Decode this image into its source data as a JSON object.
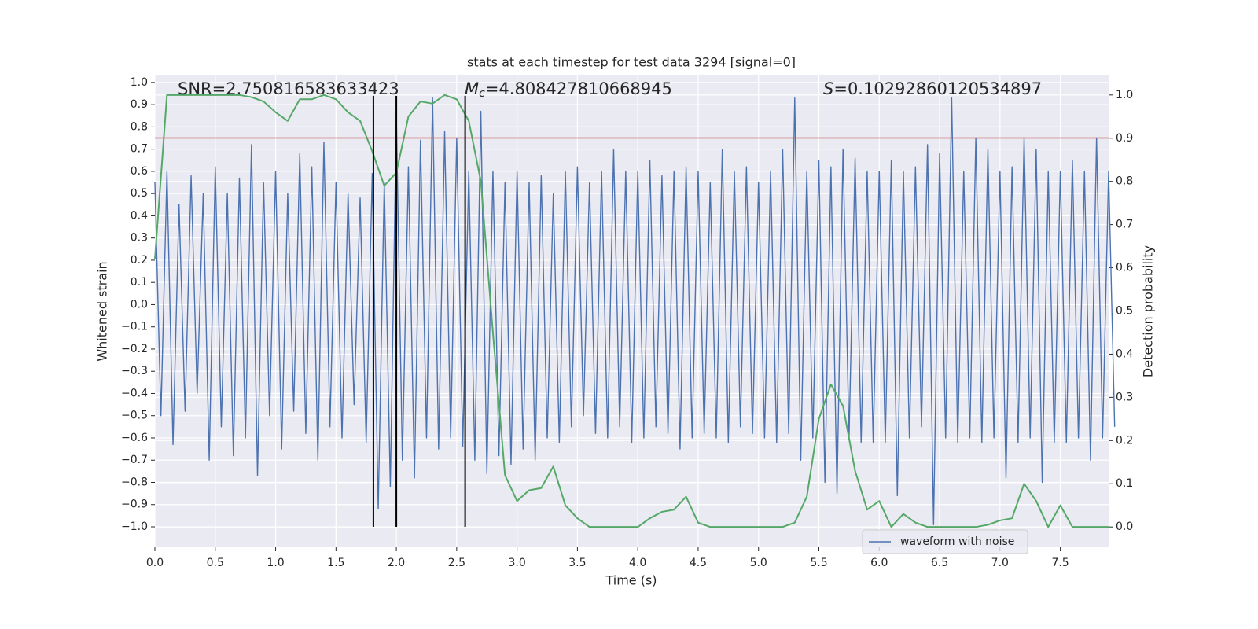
{
  "chart_data": {
    "type": "line",
    "title": "stats at each timestep for test data 3294 [signal=0]",
    "xlabel": "Time (s)",
    "ylabel": "Whitened strain",
    "y2label": "Detection probability",
    "annotations": [
      {
        "text": "SNR=2.750816583633423"
      },
      {
        "symbol": "M",
        "subscript": "c",
        "text": "=4.808427810668945"
      },
      {
        "symbol": "S",
        "text": "=0.10292860120534897"
      }
    ],
    "xlim": [
      0,
      7.9
    ],
    "ylim": [
      -1.092,
      1.035
    ],
    "y2lim": [
      -0.047,
      1.047
    ],
    "xticks": [
      {
        "value": 0,
        "label": "0.0"
      },
      {
        "value": 0.5,
        "label": "0.5"
      },
      {
        "value": 1,
        "label": "1.0"
      },
      {
        "value": 1.5,
        "label": "1.5"
      },
      {
        "value": 2,
        "label": "2.0"
      },
      {
        "value": 2.5,
        "label": "2.5"
      },
      {
        "value": 3,
        "label": "3.0"
      },
      {
        "value": 3.5,
        "label": "3.5"
      },
      {
        "value": 4,
        "label": "4.0"
      },
      {
        "value": 4.5,
        "label": "4.5"
      },
      {
        "value": 5,
        "label": "5.0"
      },
      {
        "value": 5.5,
        "label": "5.5"
      },
      {
        "value": 6,
        "label": "6.0"
      },
      {
        "value": 6.5,
        "label": "6.5"
      },
      {
        "value": 7,
        "label": "7.0"
      },
      {
        "value": 7.5,
        "label": "7.5"
      }
    ],
    "yticks": [
      {
        "value": -1,
        "label": "−1.0"
      },
      {
        "value": -0.9,
        "label": "−0.9"
      },
      {
        "value": -0.8,
        "label": "−0.8"
      },
      {
        "value": -0.7,
        "label": "−0.7"
      },
      {
        "value": -0.6,
        "label": "−0.6"
      },
      {
        "value": -0.5,
        "label": "−0.5"
      },
      {
        "value": -0.4,
        "label": "−0.4"
      },
      {
        "value": -0.3,
        "label": "−0.3"
      },
      {
        "value": -0.2,
        "label": "−0.2"
      },
      {
        "value": -0.1,
        "label": "−0.1"
      },
      {
        "value": 0,
        "label": "0.0"
      },
      {
        "value": 0.1,
        "label": "0.1"
      },
      {
        "value": 0.2,
        "label": "0.2"
      },
      {
        "value": 0.3,
        "label": "0.3"
      },
      {
        "value": 0.4,
        "label": "0.4"
      },
      {
        "value": 0.5,
        "label": "0.5"
      },
      {
        "value": 0.6,
        "label": "0.6"
      },
      {
        "value": 0.7,
        "label": "0.7"
      },
      {
        "value": 0.8,
        "label": "0.8"
      },
      {
        "value": 0.9,
        "label": "0.9"
      },
      {
        "value": 1,
        "label": "1.0"
      }
    ],
    "y2ticks": [
      {
        "value": 0,
        "label": "0.0"
      },
      {
        "value": 0.1,
        "label": "0.1"
      },
      {
        "value": 0.2,
        "label": "0.2"
      },
      {
        "value": 0.3,
        "label": "0.3"
      },
      {
        "value": 0.4,
        "label": "0.4"
      },
      {
        "value": 0.5,
        "label": "0.5"
      },
      {
        "value": 0.6,
        "label": "0.6"
      },
      {
        "value": 0.7,
        "label": "0.7"
      },
      {
        "value": 0.8,
        "label": "0.8"
      },
      {
        "value": 0.9,
        "label": "0.9"
      },
      {
        "value": 1,
        "label": "1.0"
      }
    ],
    "grid": true,
    "legend": "lower right",
    "hline": {
      "y": 0.75,
      "color": "#c44e52"
    },
    "vlines": {
      "x": [
        1.81,
        2.0,
        2.57
      ],
      "ymin": -1,
      "ymax": 0.94,
      "color": "#000000"
    },
    "series": [
      {
        "name": "waveform with noise",
        "color": "#4c72b0",
        "x": [
          0,
          0.05,
          0.1,
          0.15,
          0.2,
          0.25,
          0.3,
          0.35,
          0.4,
          0.45,
          0.5,
          0.55,
          0.6,
          0.65,
          0.7,
          0.75,
          0.8,
          0.85,
          0.9,
          0.95,
          1,
          1.05,
          1.1,
          1.15,
          1.2,
          1.25,
          1.3,
          1.35,
          1.4,
          1.45,
          1.5,
          1.55,
          1.6,
          1.65,
          1.7,
          1.75,
          1.8,
          1.85,
          1.9,
          1.95,
          2,
          2.05,
          2.1,
          2.15,
          2.2,
          2.25,
          2.3,
          2.35,
          2.4,
          2.45,
          2.5,
          2.55,
          2.6,
          2.65,
          2.7,
          2.75,
          2.8,
          2.85,
          2.9,
          2.95,
          3,
          3.05,
          3.1,
          3.15,
          3.2,
          3.25,
          3.3,
          3.35,
          3.4,
          3.45,
          3.5,
          3.55,
          3.6,
          3.65,
          3.7,
          3.75,
          3.8,
          3.85,
          3.9,
          3.95,
          4,
          4.05,
          4.1,
          4.15,
          4.2,
          4.25,
          4.3,
          4.35,
          4.4,
          4.45,
          4.5,
          4.55,
          4.6,
          4.65,
          4.7,
          4.75,
          4.8,
          4.85,
          4.9,
          4.95,
          5,
          5.05,
          5.1,
          5.15,
          5.2,
          5.25,
          5.3,
          5.35,
          5.4,
          5.45,
          5.5,
          5.55,
          5.6,
          5.65,
          5.7,
          5.75,
          5.8,
          5.85,
          5.9,
          5.95,
          6,
          6.05,
          6.1,
          6.15,
          6.2,
          6.25,
          6.3,
          6.35,
          6.4,
          6.45,
          6.5,
          6.55,
          6.6,
          6.65,
          6.7,
          6.75,
          6.8,
          6.85,
          6.9,
          6.95,
          7,
          7.05,
          7.1,
          7.15,
          7.2,
          7.25,
          7.3,
          7.35,
          7.4,
          7.45,
          7.5,
          7.55,
          7.6,
          7.65,
          7.7,
          7.75,
          7.8,
          7.85,
          7.9,
          7.95
        ],
        "values": [
          0.55,
          -0.5,
          0.6,
          -0.63,
          0.45,
          -0.48,
          0.58,
          -0.4,
          0.5,
          -0.7,
          0.62,
          -0.55,
          0.5,
          -0.68,
          0.57,
          -0.6,
          0.72,
          -0.77,
          0.55,
          -0.5,
          0.6,
          -0.65,
          0.5,
          -0.48,
          0.68,
          -0.58,
          0.62,
          -0.7,
          0.73,
          -0.55,
          0.55,
          -0.6,
          0.5,
          -0.45,
          0.48,
          -0.62,
          0.59,
          -0.92,
          0.55,
          -0.82,
          0.85,
          -0.7,
          0.62,
          -0.78,
          0.74,
          -0.6,
          0.93,
          -0.65,
          0.78,
          -0.6,
          0.75,
          -0.64,
          0.6,
          -0.7,
          0.87,
          -0.76,
          0.6,
          -0.68,
          0.55,
          -0.72,
          0.6,
          -0.65,
          0.55,
          -0.7,
          0.58,
          -0.6,
          0.5,
          -0.62,
          0.6,
          -0.55,
          0.62,
          -0.5,
          0.55,
          -0.58,
          0.6,
          -0.6,
          0.7,
          -0.55,
          0.6,
          -0.62,
          0.6,
          -0.6,
          0.65,
          -0.55,
          0.58,
          -0.58,
          0.6,
          -0.65,
          0.62,
          -0.6,
          0.6,
          -0.58,
          0.55,
          -0.6,
          0.7,
          -0.62,
          0.6,
          -0.55,
          0.62,
          -0.58,
          0.55,
          -0.6,
          0.6,
          -0.62,
          0.7,
          -0.58,
          0.93,
          -0.7,
          0.6,
          -0.6,
          0.65,
          -0.8,
          0.62,
          -0.85,
          0.7,
          -0.6,
          0.66,
          -0.62,
          0.6,
          -0.62,
          0.6,
          -0.62,
          0.65,
          -0.86,
          0.6,
          -0.6,
          0.62,
          -0.55,
          0.72,
          -0.99,
          0.68,
          -0.6,
          0.93,
          -0.62,
          0.6,
          -0.6,
          0.75,
          -0.62,
          0.7,
          -0.6,
          0.6,
          -0.78,
          0.62,
          -0.62,
          0.75,
          -0.6,
          0.7,
          -0.8,
          0.6,
          -0.62,
          0.6,
          -0.62,
          0.65,
          -0.6,
          0.6,
          -0.7,
          0.75,
          -0.6,
          0.6,
          -0.55
        ]
      },
      {
        "color": "#55a868",
        "axis": "y2",
        "x": [
          0,
          0.1,
          0.2,
          0.3,
          0.4,
          0.5,
          0.6,
          0.7,
          0.8,
          0.9,
          1,
          1.1,
          1.2,
          1.3,
          1.4,
          1.5,
          1.6,
          1.7,
          1.8,
          1.9,
          2,
          2.1,
          2.2,
          2.3,
          2.4,
          2.5,
          2.6,
          2.7,
          2.8,
          2.9,
          3,
          3.1,
          3.2,
          3.3,
          3.4,
          3.5,
          3.6,
          3.7,
          3.8,
          3.9,
          4,
          4.1,
          4.2,
          4.3,
          4.4,
          4.5,
          4.6,
          4.7,
          4.8,
          4.9,
          5,
          5.1,
          5.2,
          5.3,
          5.4,
          5.5,
          5.6,
          5.7,
          5.8,
          5.9,
          6,
          6.1,
          6.2,
          6.3,
          6.4,
          6.5,
          6.6,
          6.7,
          6.8,
          6.9,
          7,
          7.1,
          7.2,
          7.3,
          7.4,
          7.5,
          7.6,
          7.7,
          7.8,
          7.9
        ],
        "values": [
          0.62,
          1.0,
          1.0,
          1.0,
          1.0,
          1.0,
          1.0,
          1.0,
          0.995,
          0.985,
          0.96,
          0.94,
          0.99,
          0.99,
          1.0,
          0.99,
          0.96,
          0.94,
          0.87,
          0.79,
          0.82,
          0.95,
          0.985,
          0.98,
          1.0,
          0.99,
          0.94,
          0.8,
          0.45,
          0.12,
          0.06,
          0.085,
          0.09,
          0.14,
          0.05,
          0.02,
          0.0,
          0.0,
          0.0,
          0.0,
          0.0,
          0.02,
          0.035,
          0.04,
          0.07,
          0.01,
          0.0,
          0.0,
          0.0,
          0.0,
          0.0,
          0.0,
          0.0,
          0.01,
          0.07,
          0.25,
          0.33,
          0.28,
          0.13,
          0.04,
          0.06,
          0.0,
          0.03,
          0.01,
          0.0,
          0.0,
          0.0,
          0.0,
          0.0,
          0.005,
          0.015,
          0.02,
          0.1,
          0.06,
          0.0,
          0.05,
          0.0,
          0.0,
          0.0,
          0.0
        ]
      }
    ]
  }
}
